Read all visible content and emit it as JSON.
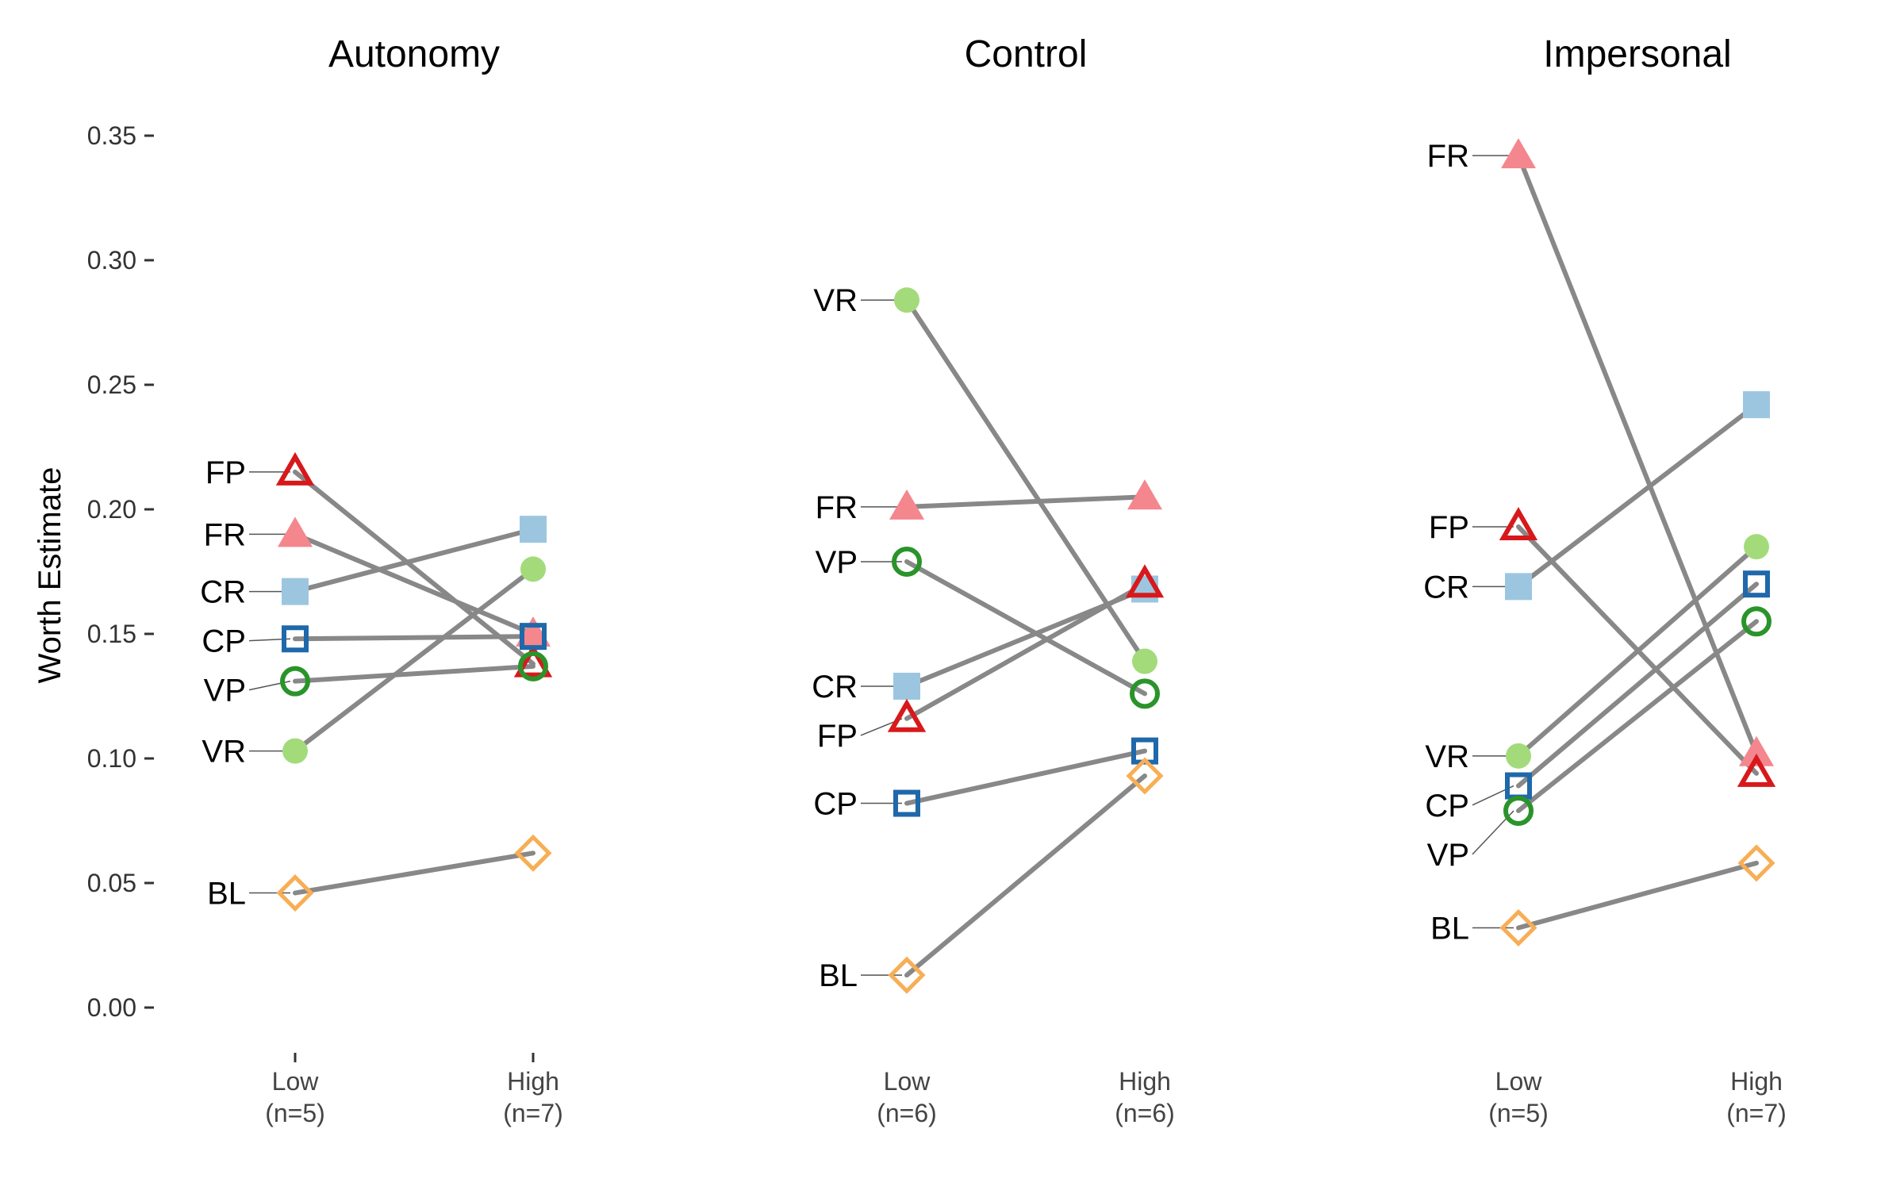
{
  "chart_data": {
    "type": "line",
    "ylabel": "Worth Estimate",
    "ylim": [
      0,
      0.35
    ],
    "yticks": [
      "0.00",
      "0.05",
      "0.10",
      "0.15",
      "0.20",
      "0.25",
      "0.30",
      "0.35"
    ],
    "ytick_values": [
      0,
      0.05,
      0.1,
      0.15,
      0.2,
      0.25,
      0.3,
      0.35
    ],
    "grid": false,
    "conditions": [
      {
        "code": "FR",
        "marker": "triangle-filled",
        "color": "#F4868E"
      },
      {
        "code": "FP",
        "marker": "triangle-open",
        "color": "#D7191C"
      },
      {
        "code": "CR",
        "marker": "square-filled",
        "color": "#9CC6E0"
      },
      {
        "code": "CP",
        "marker": "square-open",
        "color": "#1F68AA"
      },
      {
        "code": "VR",
        "marker": "circle-filled",
        "color": "#A3DB7A"
      },
      {
        "code": "VP",
        "marker": "circle-open",
        "color": "#2A942A"
      },
      {
        "code": "BL",
        "marker": "diamond-open",
        "color": "#F7AE55"
      }
    ],
    "line_color": "#888888",
    "panels": [
      {
        "title": "Autonomy",
        "x": [
          [
            "Low",
            "(n=5)"
          ],
          [
            "High",
            "(n=7)"
          ]
        ],
        "series": [
          {
            "name": "FP",
            "values": [
              0.215,
              0.138
            ]
          },
          {
            "name": "FR",
            "values": [
              0.19,
              0.15
            ]
          },
          {
            "name": "CR",
            "values": [
              0.167,
              0.192
            ]
          },
          {
            "name": "CP",
            "values": [
              0.148,
              0.149
            ]
          },
          {
            "name": "VP",
            "values": [
              0.131,
              0.137
            ]
          },
          {
            "name": "VR",
            "values": [
              0.103,
              0.176
            ]
          },
          {
            "name": "BL",
            "values": [
              0.046,
              0.062
            ]
          }
        ]
      },
      {
        "title": "Control",
        "x": [
          [
            "Low",
            "(n=6)"
          ],
          [
            "High",
            "(n=6)"
          ]
        ],
        "series": [
          {
            "name": "VR",
            "values": [
              0.284,
              0.139
            ]
          },
          {
            "name": "FR",
            "values": [
              0.201,
              0.205
            ]
          },
          {
            "name": "VP",
            "values": [
              0.179,
              0.126
            ]
          },
          {
            "name": "CR",
            "values": [
              0.129,
              0.168
            ]
          },
          {
            "name": "FP",
            "values": [
              0.116,
              0.17
            ]
          },
          {
            "name": "CP",
            "values": [
              0.082,
              0.103
            ]
          },
          {
            "name": "BL",
            "values": [
              0.013,
              0.093
            ]
          }
        ]
      },
      {
        "title": "Impersonal",
        "x": [
          [
            "Low",
            "(n=5)"
          ],
          [
            "High",
            "(n=7)"
          ]
        ],
        "series": [
          {
            "name": "FR",
            "values": [
              0.342,
              0.102
            ]
          },
          {
            "name": "FP",
            "values": [
              0.193,
              0.094
            ]
          },
          {
            "name": "CR",
            "values": [
              0.169,
              0.242
            ]
          },
          {
            "name": "VR",
            "values": [
              0.101,
              0.185
            ]
          },
          {
            "name": "CP",
            "values": [
              0.089,
              0.17
            ]
          },
          {
            "name": "VP",
            "values": [
              0.079,
              0.155
            ]
          },
          {
            "name": "BL",
            "values": [
              0.032,
              0.058
            ]
          }
        ]
      }
    ]
  }
}
